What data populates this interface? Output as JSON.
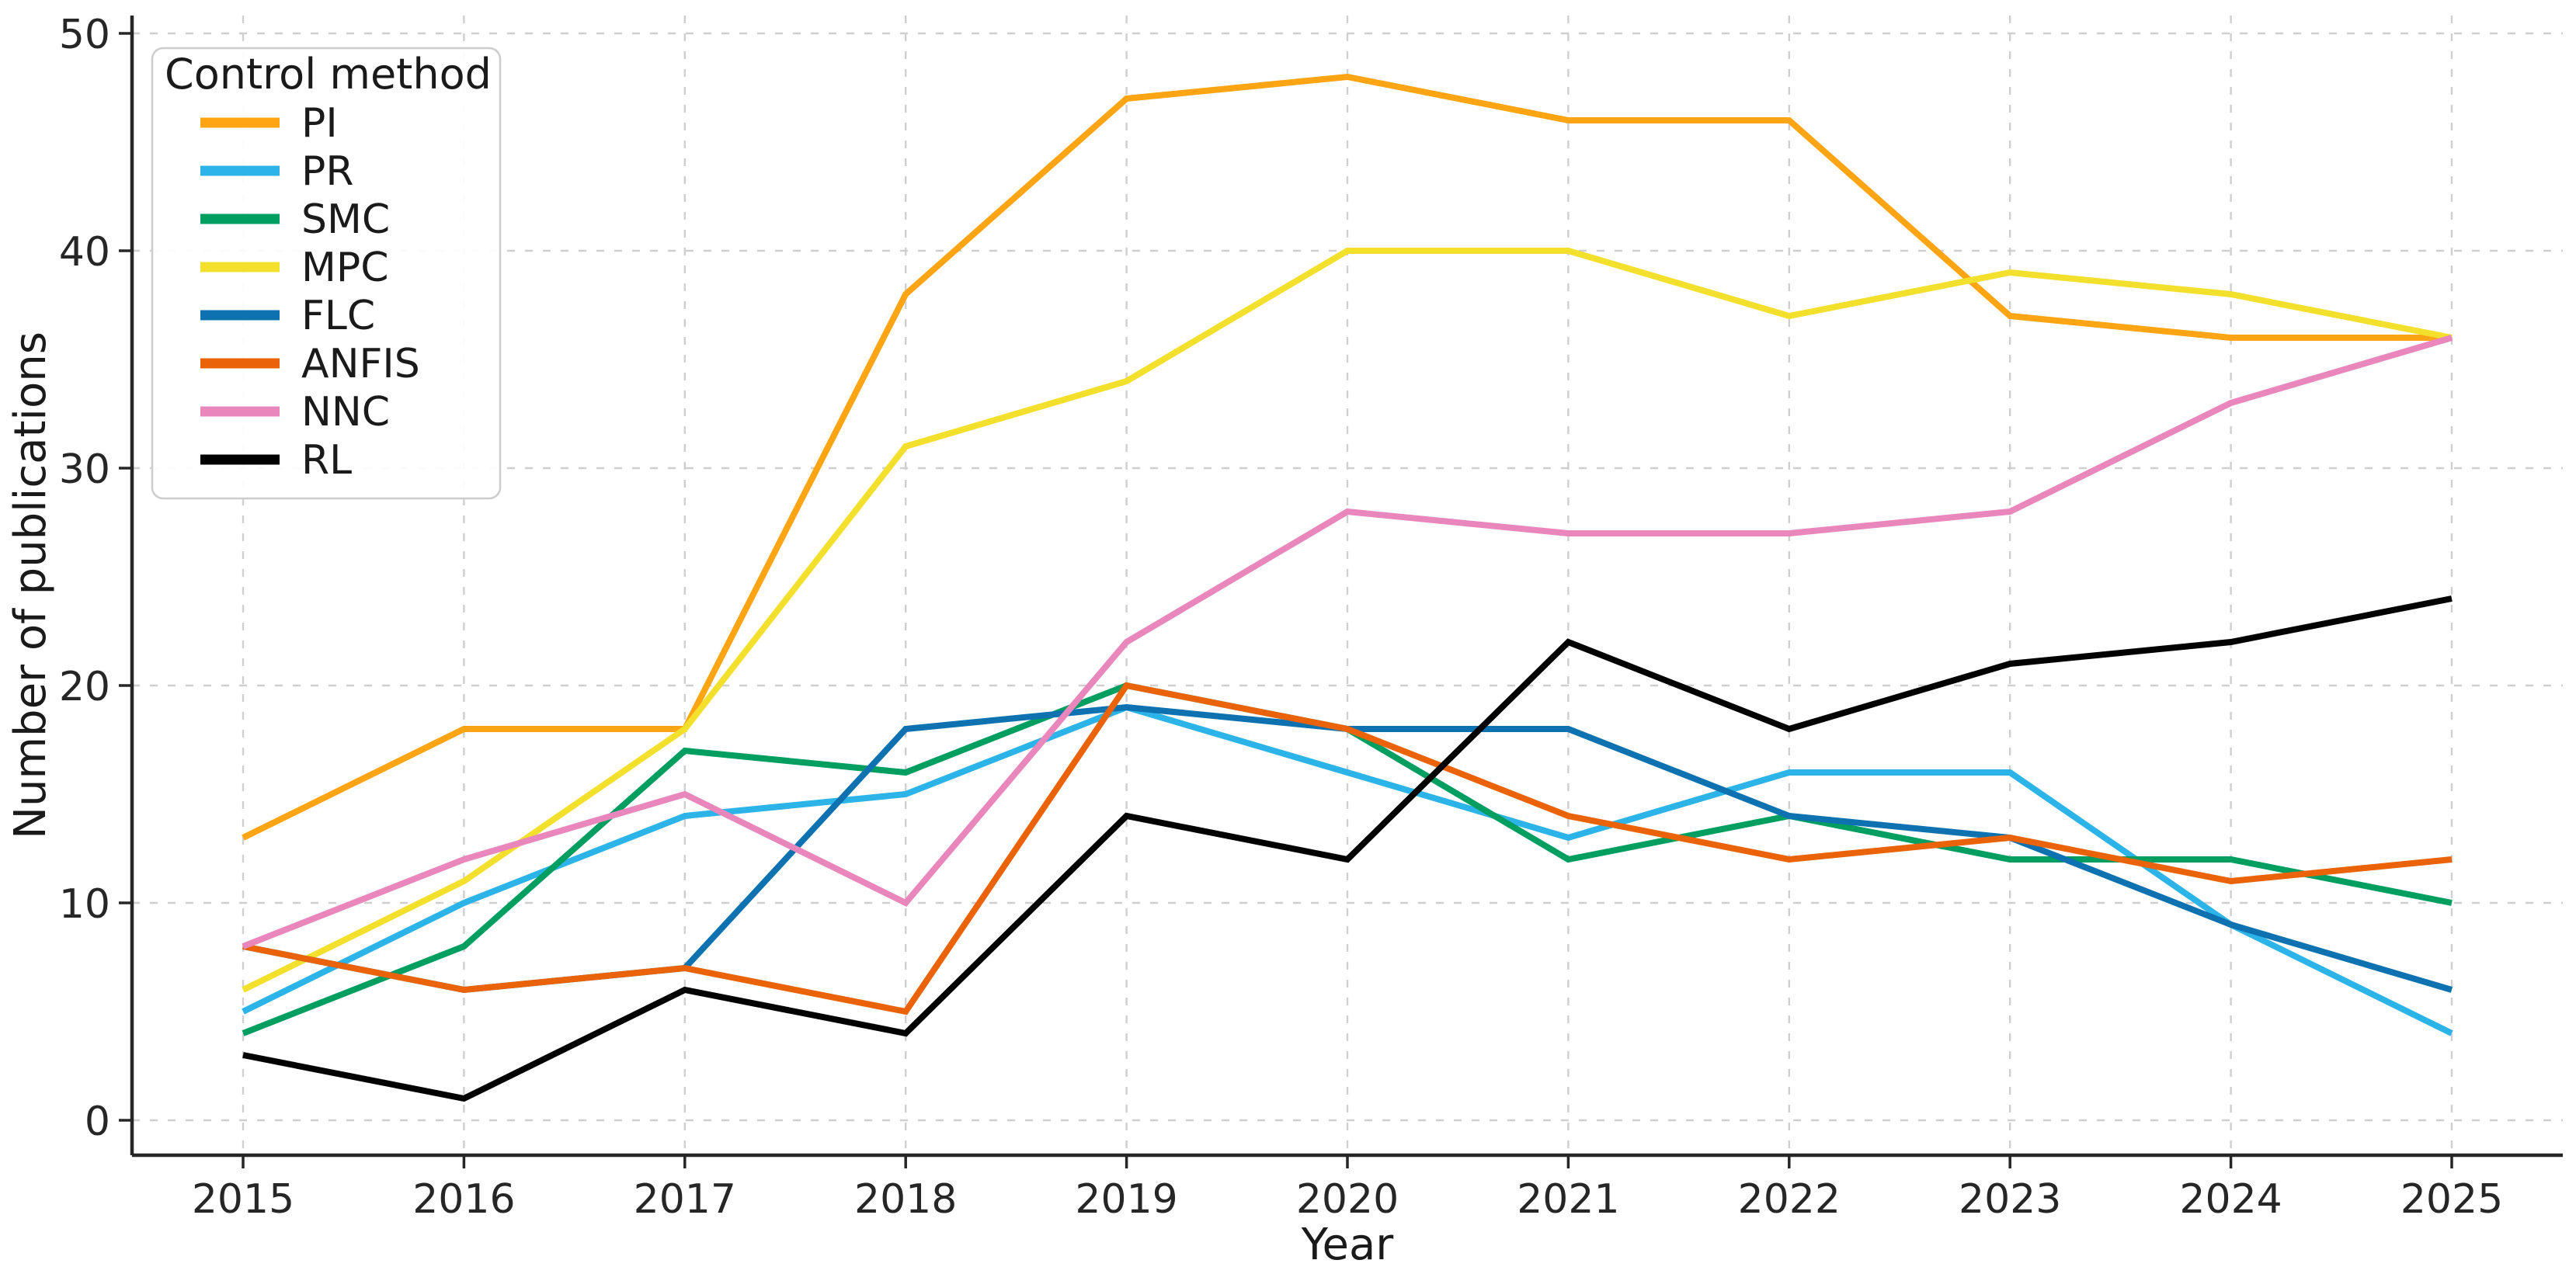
{
  "figure": {
    "background": "#ffffff",
    "text_color": "#1a1a1a",
    "grid_color": "#cfcfcf",
    "spine_color": "#262626"
  },
  "chart_data": {
    "type": "line",
    "title": "",
    "xlabel": "Year",
    "ylabel": "Number of publications",
    "legend_title": "Control method",
    "legend_position": "upper left",
    "grid": "dashed both axes",
    "x": [
      2015,
      2016,
      2017,
      2018,
      2019,
      2020,
      2021,
      2022,
      2023,
      2024,
      2025
    ],
    "y_ticks": [
      0,
      10,
      20,
      30,
      40,
      50
    ],
    "ylim": [
      0,
      50
    ],
    "line_width": 8,
    "series": [
      {
        "name": "PI",
        "color": "#FFA412",
        "values": [
          13,
          18,
          18,
          38,
          47,
          48,
          46,
          46,
          37,
          36,
          36
        ]
      },
      {
        "name": "PR",
        "color": "#2CB4E8",
        "values": [
          5,
          10,
          14,
          15,
          19,
          16,
          13,
          16,
          16,
          9,
          4
        ]
      },
      {
        "name": "SMC",
        "color": "#009E60",
        "values": [
          4,
          8,
          17,
          16,
          20,
          18,
          12,
          14,
          12,
          12,
          10
        ]
      },
      {
        "name": "MPC",
        "color": "#F3E02C",
        "values": [
          6,
          11,
          18,
          31,
          34,
          40,
          40,
          37,
          39,
          38,
          36
        ]
      },
      {
        "name": "FLC",
        "color": "#0E72B1",
        "values": [
          8,
          6,
          7,
          18,
          19,
          18,
          18,
          14,
          13,
          9,
          6
        ]
      },
      {
        "name": "ANFIS",
        "color": "#EB6309",
        "values": [
          8,
          6,
          7,
          5,
          20,
          18,
          14,
          12,
          13,
          11,
          12
        ]
      },
      {
        "name": "NNC",
        "color": "#E987BC",
        "values": [
          8,
          12,
          15,
          10,
          22,
          28,
          27,
          27,
          28,
          33,
          36
        ]
      },
      {
        "name": "RL",
        "color": "#000000",
        "values": [
          3,
          1,
          6,
          4,
          14,
          12,
          22,
          18,
          21,
          22,
          24
        ]
      }
    ]
  }
}
